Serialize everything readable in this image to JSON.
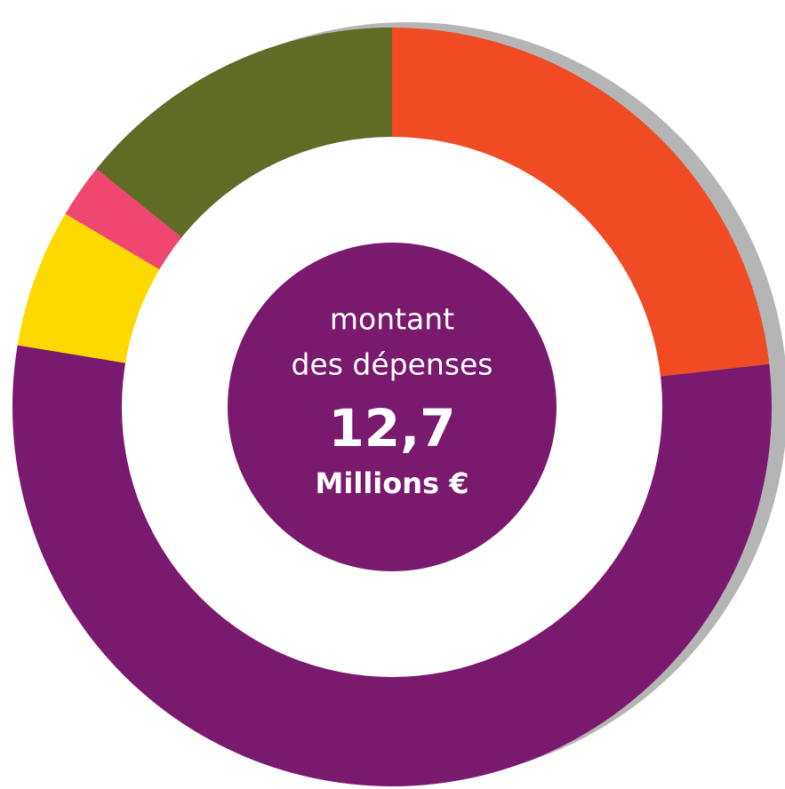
{
  "chart_data": {
    "type": "donut",
    "values": [
      23.2,
      54.4,
      5.9,
      2.3,
      14.2
    ],
    "colors": [
      "#f04b22",
      "#7a1a6e",
      "#fdd900",
      "#ef4770",
      "#606b26"
    ],
    "center_text": [
      "montant",
      "des dépenses",
      "12,7",
      "Millions €"
    ]
  }
}
